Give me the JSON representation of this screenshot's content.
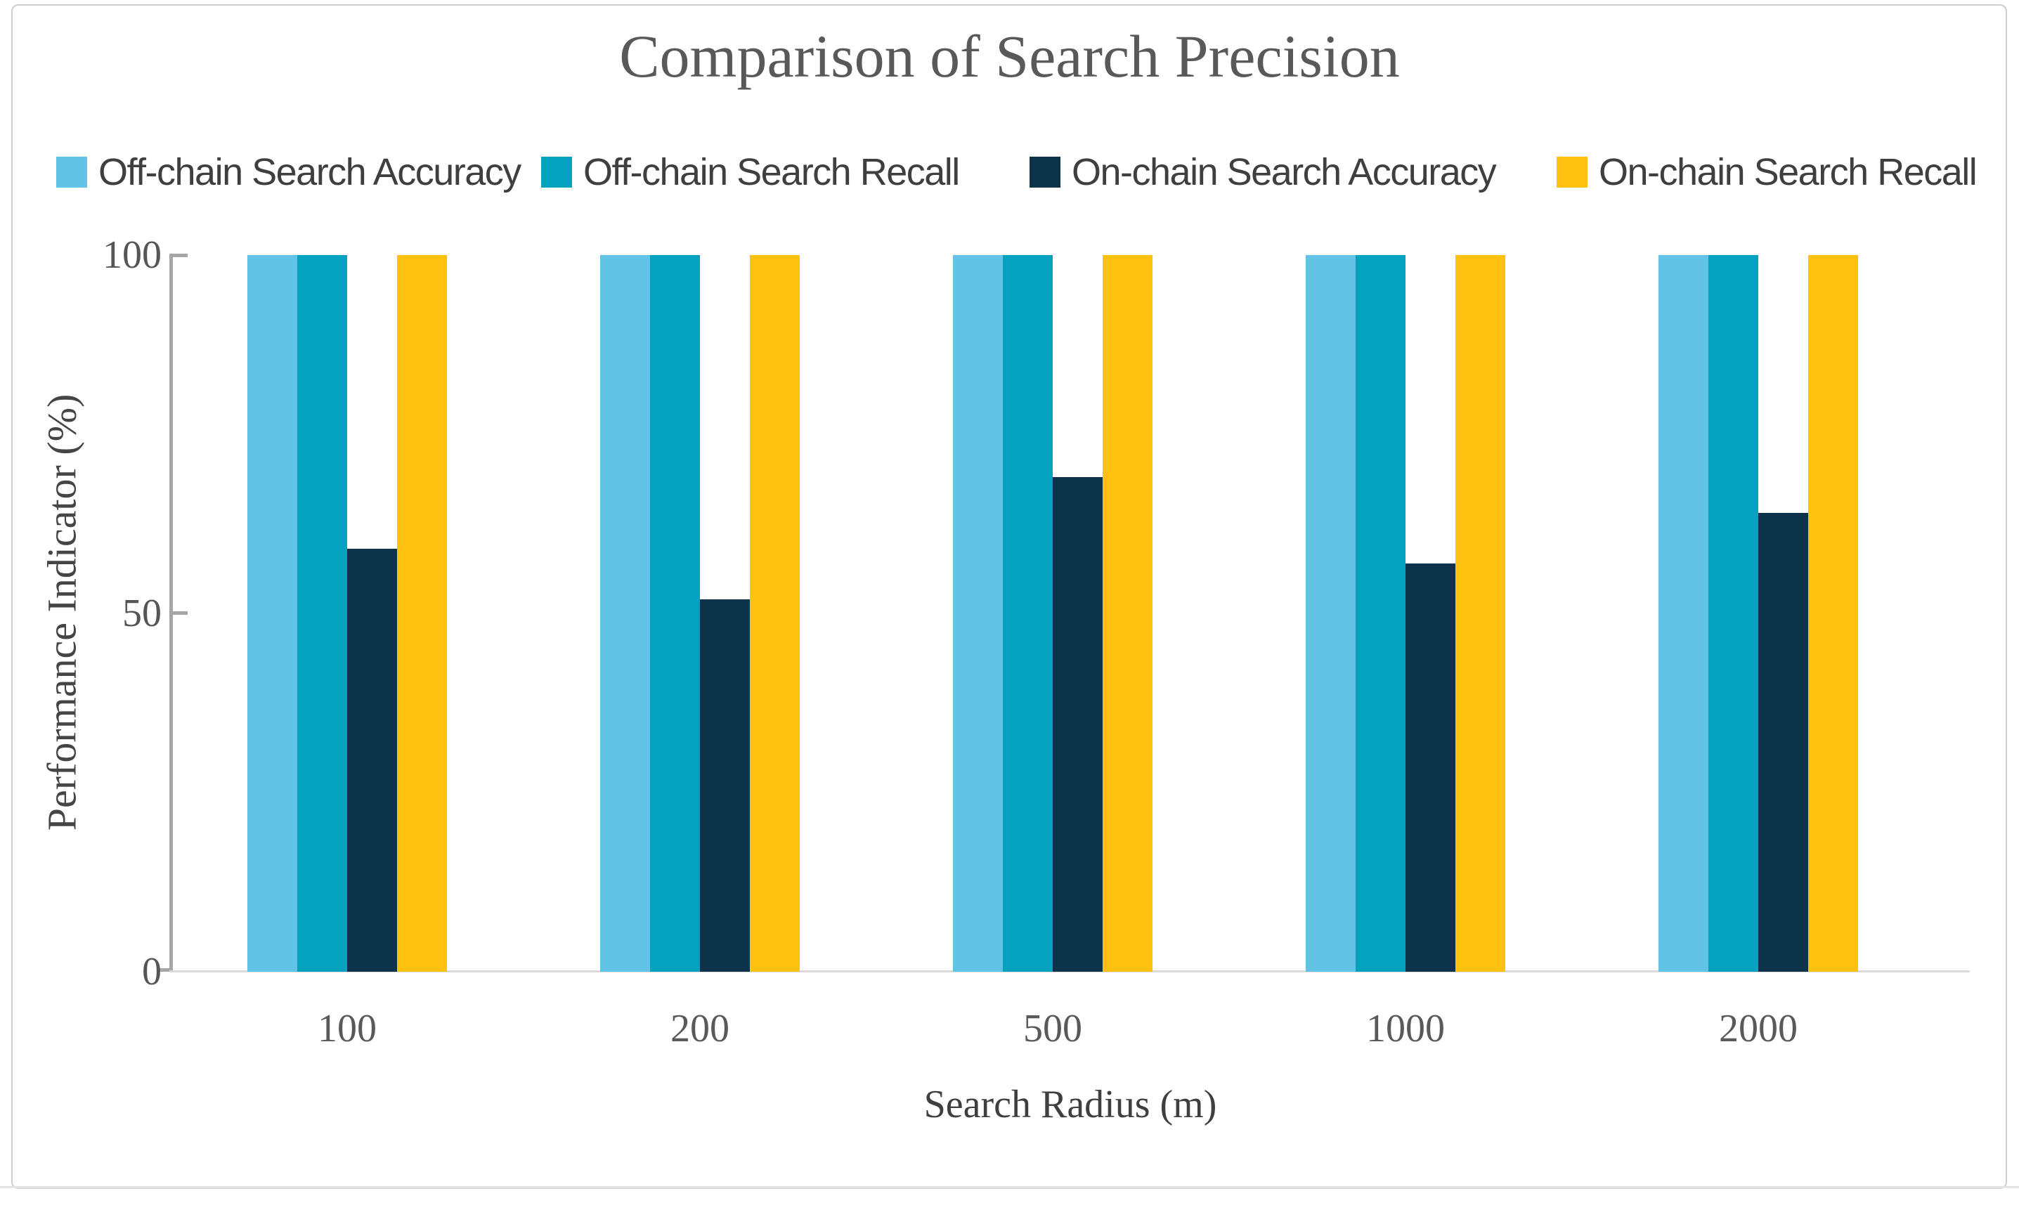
{
  "figure": {
    "title": "Comparison of Search Precision"
  },
  "chart_data": {
    "type": "bar",
    "title": "Comparison of Search Precision",
    "xlabel": "Search Radius (m)",
    "ylabel": "Performance Indicator (%)",
    "categories": [
      "100",
      "200",
      "500",
      "1000",
      "2000"
    ],
    "series": [
      {
        "name": "Off-chain Search Accuracy",
        "color": "#62C3E6",
        "values": [
          100,
          100,
          100,
          100,
          100
        ]
      },
      {
        "name": "Off-chain Search Recall",
        "color": "#04A2BE",
        "values": [
          100,
          100,
          100,
          100,
          100
        ]
      },
      {
        "name": "On-chain Search Accuracy",
        "color": "#0D334A",
        "values": [
          59,
          52,
          69,
          57,
          64
        ]
      },
      {
        "name": "On-chain Search Recall",
        "color": "#FEC110",
        "values": [
          100,
          100,
          100,
          100,
          100
        ]
      }
    ],
    "ylim": [
      0,
      100
    ],
    "yticks": [
      0,
      50,
      100
    ],
    "grid": false,
    "legend_position": "top",
    "axis_color": "#a6a6a6",
    "baseline_color": "#d9d9d9",
    "text_color": "#595959"
  }
}
